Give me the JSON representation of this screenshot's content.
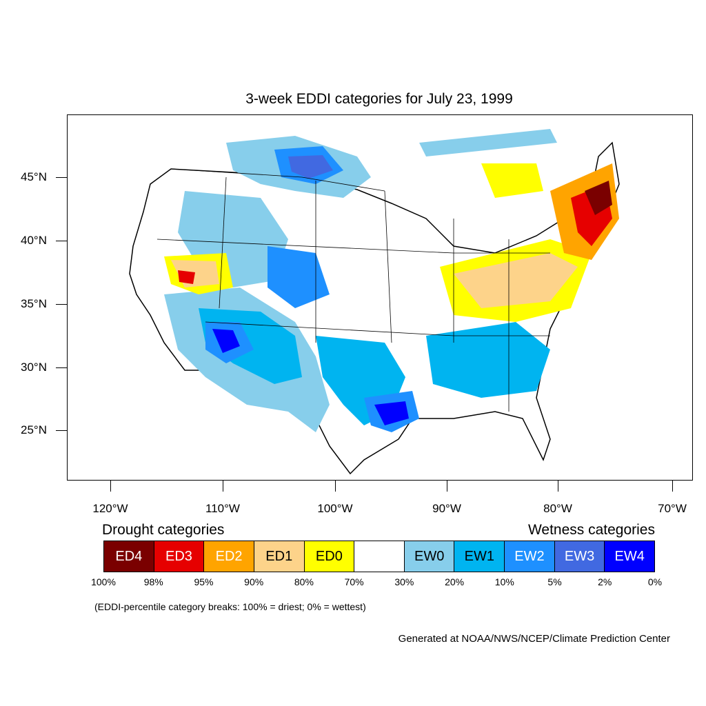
{
  "title": "3-week EDDI categories for July 23, 1999",
  "axes": {
    "y_labels": [
      "45°N",
      "40°N",
      "35°N",
      "30°N",
      "25°N"
    ],
    "x_labels": [
      "120°W",
      "110°W",
      "100°W",
      "90°W",
      "80°W",
      "70°W"
    ]
  },
  "legend": {
    "drought_heading": "Drought categories",
    "wetness_heading": "Wetness categories",
    "categories": [
      {
        "label": "ED4",
        "color": "#7a0000",
        "text_color": "#ffffff"
      },
      {
        "label": "ED3",
        "color": "#e60000",
        "text_color": "#ffffff"
      },
      {
        "label": "ED2",
        "color": "#ffa400",
        "text_color": "#ffffff"
      },
      {
        "label": "ED1",
        "color": "#fdd38a",
        "text_color": "#000000"
      },
      {
        "label": "ED0",
        "color": "#ffff00",
        "text_color": "#000000"
      },
      {
        "label": "",
        "color": "#ffffff",
        "text_color": "#000000"
      },
      {
        "label": "EW0",
        "color": "#87ceeb",
        "text_color": "#000000"
      },
      {
        "label": "EW1",
        "color": "#00b4f0",
        "text_color": "#000000"
      },
      {
        "label": "EW2",
        "color": "#1e90ff",
        "text_color": "#ffffff"
      },
      {
        "label": "EW3",
        "color": "#4169e1",
        "text_color": "#ffffff"
      },
      {
        "label": "EW4",
        "color": "#0000ff",
        "text_color": "#ffffff"
      }
    ],
    "breaks": [
      "100%",
      "98%",
      "95%",
      "90%",
      "80%",
      "70%",
      "30%",
      "20%",
      "10%",
      "5%",
      "2%",
      "0%"
    ]
  },
  "note": "(EDDI-percentile category breaks: 100% = driest; 0% = wettest)",
  "credit": "Generated at NOAA/NWS/NCEP/Climate Prediction Center"
}
